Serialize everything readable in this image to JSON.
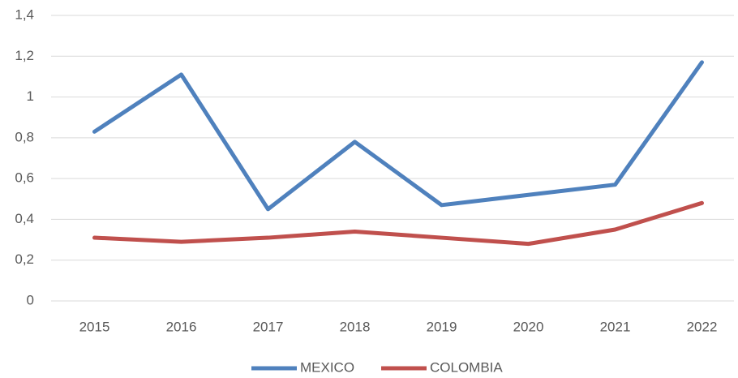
{
  "chart_data": {
    "type": "line",
    "categories": [
      "2015",
      "2016",
      "2017",
      "2018",
      "2019",
      "2020",
      "2021",
      "2022"
    ],
    "series": [
      {
        "name": "MEXICO",
        "color": "#4f81bd",
        "values": [
          0.83,
          1.11,
          0.45,
          0.78,
          0.47,
          0.52,
          0.57,
          1.17
        ]
      },
      {
        "name": "COLOMBIA",
        "color": "#c0504d",
        "values": [
          0.31,
          0.29,
          0.31,
          0.34,
          0.31,
          0.28,
          0.35,
          0.48
        ]
      }
    ],
    "ylim": [
      0,
      1.4
    ],
    "yticks": [
      0,
      {
        "value": 0.2,
        "label": "0,2"
      },
      {
        "value": 0.4,
        "label": "0,4"
      },
      {
        "value": 0.6,
        "label": "0,6"
      },
      {
        "value": 0.8,
        "label": "0,8"
      },
      1,
      {
        "value": 1.2,
        "label": "1,2"
      },
      {
        "value": 1.4,
        "label": "1,4"
      }
    ],
    "grid": true,
    "legend": "bottom"
  }
}
